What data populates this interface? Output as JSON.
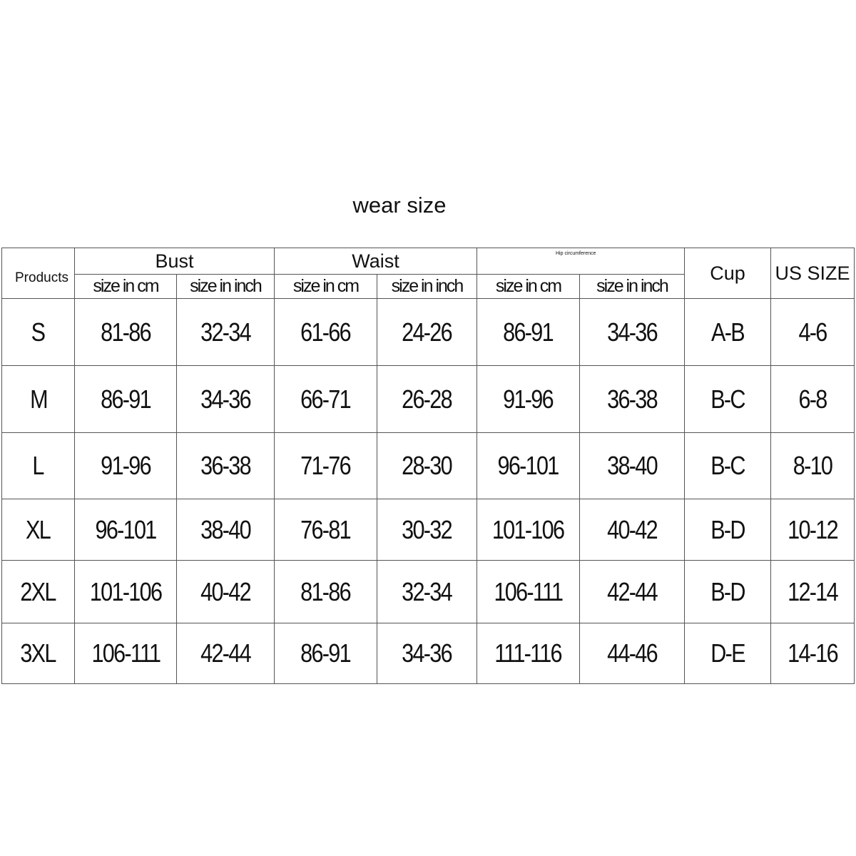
{
  "title": "wear size",
  "headers": {
    "products": "Products",
    "bust": "Bust",
    "waist": "Waist",
    "hip": "Hip circumference",
    "cup": "Cup",
    "us_size": "US SIZE",
    "cm": "size in cm",
    "inch": "size in inch"
  },
  "rows": [
    [
      "S",
      "81-86",
      "32-34",
      "61-66",
      "24-26",
      "86-91",
      "34-36",
      "A-B",
      "4-6"
    ],
    [
      "M",
      "86-91",
      "34-36",
      "66-71",
      "26-28",
      "91-96",
      "36-38",
      "B-C",
      "6-8"
    ],
    [
      "L",
      "91-96",
      "36-38",
      "71-76",
      "28-30",
      "96-101",
      "38-40",
      "B-C",
      "8-10"
    ],
    [
      "XL",
      "96-101",
      "38-40",
      "76-81",
      "30-32",
      "101-106",
      "40-42",
      "B-D",
      "10-12"
    ],
    [
      "2XL",
      "101-106",
      "40-42",
      "81-86",
      "32-34",
      "106-111",
      "42-44",
      "B-D",
      "12-14"
    ],
    [
      "3XL",
      "106-111",
      "42-44",
      "86-91",
      "34-36",
      "111-116",
      "44-46",
      "D-E",
      "14-16"
    ]
  ]
}
